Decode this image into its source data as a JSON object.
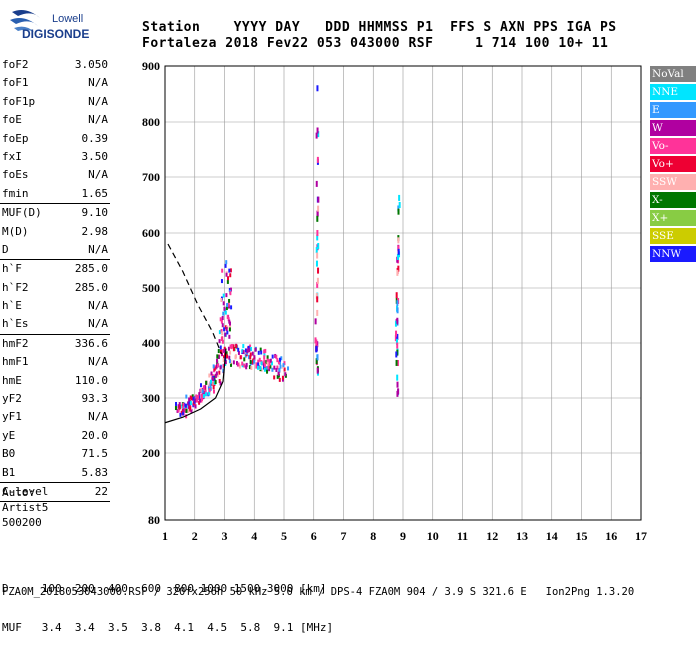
{
  "logo": {
    "line1": "Lowell",
    "line2": "DIGISONDE"
  },
  "header": {
    "labels": [
      "Station",
      "YYYY",
      "DAY",
      "DDD",
      "HHMMSS",
      "P1",
      "FFS",
      "S",
      "AXN",
      "PPS",
      "IGA",
      "PS"
    ],
    "values": [
      "Fortaleza",
      "2018",
      "Fev22",
      "053",
      "043000",
      "RSF",
      "",
      "1",
      "714",
      "100",
      "10+",
      "11"
    ],
    "line1": "Station    YYYY DAY   DDD HHMMSS P1  FFS S AXN PPS IGA PS",
    "line2": "Fortaleza 2018 Fev22 053 043000 RSF     1 714 100 10+ 11"
  },
  "params_group1": [
    {
      "name": "foF2",
      "value": "3.050"
    },
    {
      "name": "foF1",
      "value": "N/A"
    },
    {
      "name": "foF1p",
      "value": "N/A"
    },
    {
      "name": "foE",
      "value": "N/A"
    },
    {
      "name": "foEp",
      "value": "0.39"
    },
    {
      "name": "fxI",
      "value": "3.50"
    },
    {
      "name": "foEs",
      "value": "N/A"
    },
    {
      "name": "fmin",
      "value": "1.65"
    }
  ],
  "params_group2": [
    {
      "name": "MUF(D)",
      "value": "9.10"
    },
    {
      "name": "M(D)",
      "value": "2.98"
    },
    {
      "name": "D",
      "value": "N/A"
    }
  ],
  "params_group3": [
    {
      "name": "h`F",
      "value": "285.0"
    },
    {
      "name": "h`F2",
      "value": "285.0"
    },
    {
      "name": "h`E",
      "value": "N/A"
    },
    {
      "name": "h`Es",
      "value": "N/A"
    }
  ],
  "params_group4": [
    {
      "name": "hmF2",
      "value": "336.6"
    },
    {
      "name": "hmF1",
      "value": "N/A"
    },
    {
      "name": "hmE",
      "value": "110.0"
    },
    {
      "name": "yF2",
      "value": "93.3"
    },
    {
      "name": "yF1",
      "value": "N/A"
    },
    {
      "name": "yE",
      "value": "20.0"
    },
    {
      "name": "B0",
      "value": "71.5"
    },
    {
      "name": "B1",
      "value": "5.83"
    }
  ],
  "params_group5": [
    {
      "name": "C-level",
      "value": "22"
    }
  ],
  "auto": {
    "line1": "Auto:",
    "line2": "Artist5",
    "line3": "500200"
  },
  "legend": [
    {
      "label": "NoVal",
      "color": "#808080"
    },
    {
      "label": "NNE",
      "color": "#00e5ff"
    },
    {
      "label": "E",
      "color": "#3399ff"
    },
    {
      "label": "W",
      "color": "#b000a0"
    },
    {
      "label": "Vo-",
      "color": "#ff3399"
    },
    {
      "label": "Vo+",
      "color": "#ee0033"
    },
    {
      "label": "SSW",
      "color": "#ffb0b0"
    },
    {
      "label": "X-",
      "color": "#007700"
    },
    {
      "label": "X+",
      "color": "#88cc44"
    },
    {
      "label": "SSE",
      "color": "#cccc00"
    },
    {
      "label": "NNW",
      "color": "#1a1aff"
    }
  ],
  "footer": {
    "d_line": "D     100  200  400  600  800 1000 1500 3000 [km]",
    "muf_line": "MUF   3.4  3.4  3.5  3.8  4.1  4.5  5.8  9.1 [MHz]",
    "bottom": "FZA0M_2018053043000.RSF / 320fx256h 50 kHz 5.0 km / DPS-4 FZA0M 904 / 3.9 S 321.6 E   Ion2Png 1.3.20"
  },
  "chart_data": {
    "type": "scatter",
    "x_ticks": [
      1,
      2,
      3,
      4,
      5,
      6,
      7,
      8,
      9,
      10,
      11,
      12,
      13,
      14,
      15,
      16,
      17
    ],
    "y_ticks": [
      80,
      200,
      300,
      400,
      500,
      600,
      700,
      800,
      900
    ],
    "xlim": [
      1,
      17
    ],
    "ylim": [
      80,
      900
    ],
    "y_scale": "nonlinear",
    "grid": true,
    "x_units": "MHz",
    "y_units": "km",
    "traces": [
      {
        "name": "ionogram trace O",
        "x": [
          1.45,
          1.7,
          2.0,
          2.3,
          2.6,
          2.8,
          2.95,
          3.02,
          3.05
        ],
        "y": [
          280,
          290,
          300,
          315,
          335,
          360,
          400,
          460,
          540
        ]
      },
      {
        "name": "echo band",
        "x": [
          3.2,
          3.5,
          3.8,
          4.1,
          4.4,
          4.7,
          5.0
        ],
        "y": [
          385,
          380,
          378,
          375,
          372,
          360,
          355
        ]
      },
      {
        "name": "multi-hop 6MHz",
        "x": [
          6.1,
          6.05,
          6.1,
          6.08
        ],
        "y": [
          350,
          420,
          600,
          880
        ]
      },
      {
        "name": "multi-hop 8.8MHz",
        "x": [
          8.8,
          8.75,
          8.8,
          8.85
        ],
        "y": [
          300,
          420,
          560,
          680
        ]
      }
    ],
    "profile_curve": {
      "x": [
        1.0,
        1.6,
        2.2,
        2.7,
        2.95,
        3.05
      ],
      "y": [
        255,
        265,
        280,
        300,
        330,
        390
      ]
    },
    "profile_dashed": {
      "x": [
        1.1,
        1.6,
        2.1,
        2.6,
        2.9
      ],
      "y": [
        580,
        530,
        470,
        420,
        380
      ]
    }
  }
}
